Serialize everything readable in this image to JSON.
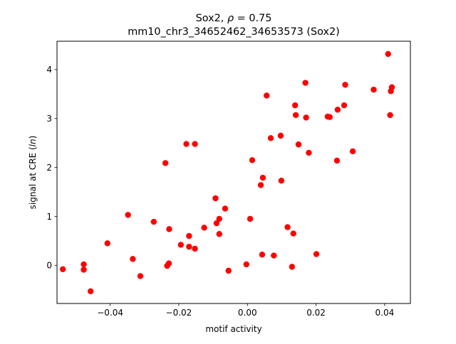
{
  "chart_data": {
    "type": "scatter",
    "title_line1_prefix": "Sox2, ",
    "title_line1_symbol": "ρ",
    "title_line1_suffix": " = 0.75",
    "title_line2": "mm10_chr3_34652462_34653573 (Sox2)",
    "xlabel": "motif activity",
    "ylabel_prefix": "signal at CRE (",
    "ylabel_symbol": "ln",
    "ylabel_suffix": ")",
    "xlim": [
      -0.0555,
      0.0475
    ],
    "ylim": [
      -0.78,
      4.58
    ],
    "x_ticks": [
      -0.04,
      -0.02,
      0.0,
      0.02,
      0.04
    ],
    "x_tick_labels": [
      "−0.04",
      "−0.02",
      "0.00",
      "0.02",
      "0.04"
    ],
    "y_ticks": [
      0,
      1,
      2,
      3,
      4
    ],
    "y_tick_labels": [
      "0",
      "1",
      "2",
      "3",
      "4"
    ],
    "marker_color": "#ff0000",
    "grid": false,
    "points": [
      {
        "x": -0.0538,
        "y": -0.08
      },
      {
        "x": -0.0477,
        "y": 0.02
      },
      {
        "x": -0.0477,
        "y": -0.09
      },
      {
        "x": -0.0457,
        "y": -0.53
      },
      {
        "x": -0.0408,
        "y": 0.45
      },
      {
        "x": -0.0348,
        "y": 1.03
      },
      {
        "x": -0.0334,
        "y": 0.13
      },
      {
        "x": -0.0312,
        "y": -0.22
      },
      {
        "x": -0.0273,
        "y": 0.89
      },
      {
        "x": -0.0239,
        "y": 2.09
      },
      {
        "x": -0.0234,
        "y": -0.01
      },
      {
        "x": -0.0229,
        "y": 0.04
      },
      {
        "x": -0.0228,
        "y": 0.74
      },
      {
        "x": -0.0194,
        "y": 0.42
      },
      {
        "x": -0.0178,
        "y": 2.48
      },
      {
        "x": -0.017,
        "y": 0.6
      },
      {
        "x": -0.017,
        "y": 0.38
      },
      {
        "x": -0.0153,
        "y": 2.48
      },
      {
        "x": -0.0153,
        "y": 0.34
      },
      {
        "x": -0.0126,
        "y": 0.77
      },
      {
        "x": -0.0093,
        "y": 1.37
      },
      {
        "x": -0.009,
        "y": 0.86
      },
      {
        "x": -0.0082,
        "y": 0.95
      },
      {
        "x": -0.0082,
        "y": 0.64
      },
      {
        "x": -0.0065,
        "y": 1.16
      },
      {
        "x": -0.0055,
        "y": -0.11
      },
      {
        "x": -0.0003,
        "y": 0.02
      },
      {
        "x": 0.0008,
        "y": 0.95
      },
      {
        "x": 0.0014,
        "y": 2.15
      },
      {
        "x": 0.0039,
        "y": 1.64
      },
      {
        "x": 0.0043,
        "y": 0.22
      },
      {
        "x": 0.0045,
        "y": 1.79
      },
      {
        "x": 0.0056,
        "y": 3.47
      },
      {
        "x": 0.0068,
        "y": 2.6
      },
      {
        "x": 0.0077,
        "y": 0.2
      },
      {
        "x": 0.0097,
        "y": 2.65
      },
      {
        "x": 0.0099,
        "y": 1.73
      },
      {
        "x": 0.0117,
        "y": 0.78
      },
      {
        "x": 0.013,
        "y": -0.03
      },
      {
        "x": 0.0134,
        "y": 0.65
      },
      {
        "x": 0.0139,
        "y": 3.27
      },
      {
        "x": 0.0141,
        "y": 3.07
      },
      {
        "x": 0.0149,
        "y": 2.47
      },
      {
        "x": 0.0169,
        "y": 3.73
      },
      {
        "x": 0.0171,
        "y": 3.02
      },
      {
        "x": 0.0179,
        "y": 2.3
      },
      {
        "x": 0.0201,
        "y": 0.23
      },
      {
        "x": 0.0234,
        "y": 3.04
      },
      {
        "x": 0.024,
        "y": 3.03
      },
      {
        "x": 0.0261,
        "y": 2.14
      },
      {
        "x": 0.0263,
        "y": 3.18
      },
      {
        "x": 0.0282,
        "y": 3.27
      },
      {
        "x": 0.0285,
        "y": 3.69
      },
      {
        "x": 0.0307,
        "y": 2.33
      },
      {
        "x": 0.0368,
        "y": 3.59
      },
      {
        "x": 0.041,
        "y": 4.32
      },
      {
        "x": 0.0416,
        "y": 3.07
      },
      {
        "x": 0.0418,
        "y": 3.56
      },
      {
        "x": 0.0421,
        "y": 3.64
      }
    ]
  }
}
